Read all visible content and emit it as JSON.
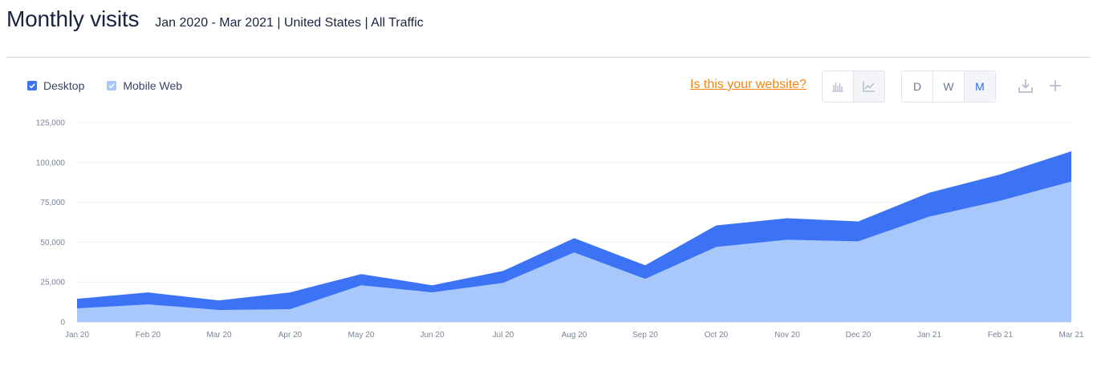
{
  "header": {
    "title": "Monthly visits",
    "subtitle": "Jan 2020 - Mar 2021 | United States | All Traffic"
  },
  "legend": {
    "items": [
      {
        "label": "Desktop",
        "color": "#3c73f5"
      },
      {
        "label": "Mobile Web",
        "color": "#a8c7fb"
      }
    ]
  },
  "toolbar": {
    "claim_link": "Is this your website?",
    "chart_types": [
      {
        "icon": "bar-chart-icon",
        "active": false
      },
      {
        "icon": "line-chart-icon",
        "active": true
      }
    ],
    "granularity": [
      {
        "label": "D",
        "active": false
      },
      {
        "label": "W",
        "active": false
      },
      {
        "label": "M",
        "active": true
      }
    ],
    "actions": [
      {
        "icon": "download-icon"
      },
      {
        "icon": "plus-icon"
      }
    ]
  },
  "chart_data": {
    "type": "area",
    "stacked": true,
    "categories": [
      "Jan 20",
      "Feb 20",
      "Mar 20",
      "Apr 20",
      "May 20",
      "Jun 20",
      "Jul 20",
      "Aug 20",
      "Sep 20",
      "Oct 20",
      "Nov 20",
      "Dec 20",
      "Jan 21",
      "Feb 21",
      "Mar 21"
    ],
    "series": [
      {
        "name": "Mobile Web",
        "color": "#a8c7fb",
        "values": [
          8500,
          11000,
          7500,
          8000,
          23000,
          18500,
          24500,
          43500,
          27000,
          47000,
          51500,
          50500,
          66000,
          76000,
          88000
        ]
      },
      {
        "name": "Desktop",
        "color": "#3c73f5",
        "values": [
          6000,
          7500,
          6000,
          10500,
          7000,
          4500,
          7500,
          9000,
          8500,
          13500,
          13500,
          12500,
          15000,
          16500,
          19000
        ]
      }
    ],
    "y_ticks": [
      "0",
      "25,000",
      "50,000",
      "75,000",
      "100,000",
      "125,000"
    ],
    "ylim": [
      0,
      125000
    ],
    "grid": true
  }
}
